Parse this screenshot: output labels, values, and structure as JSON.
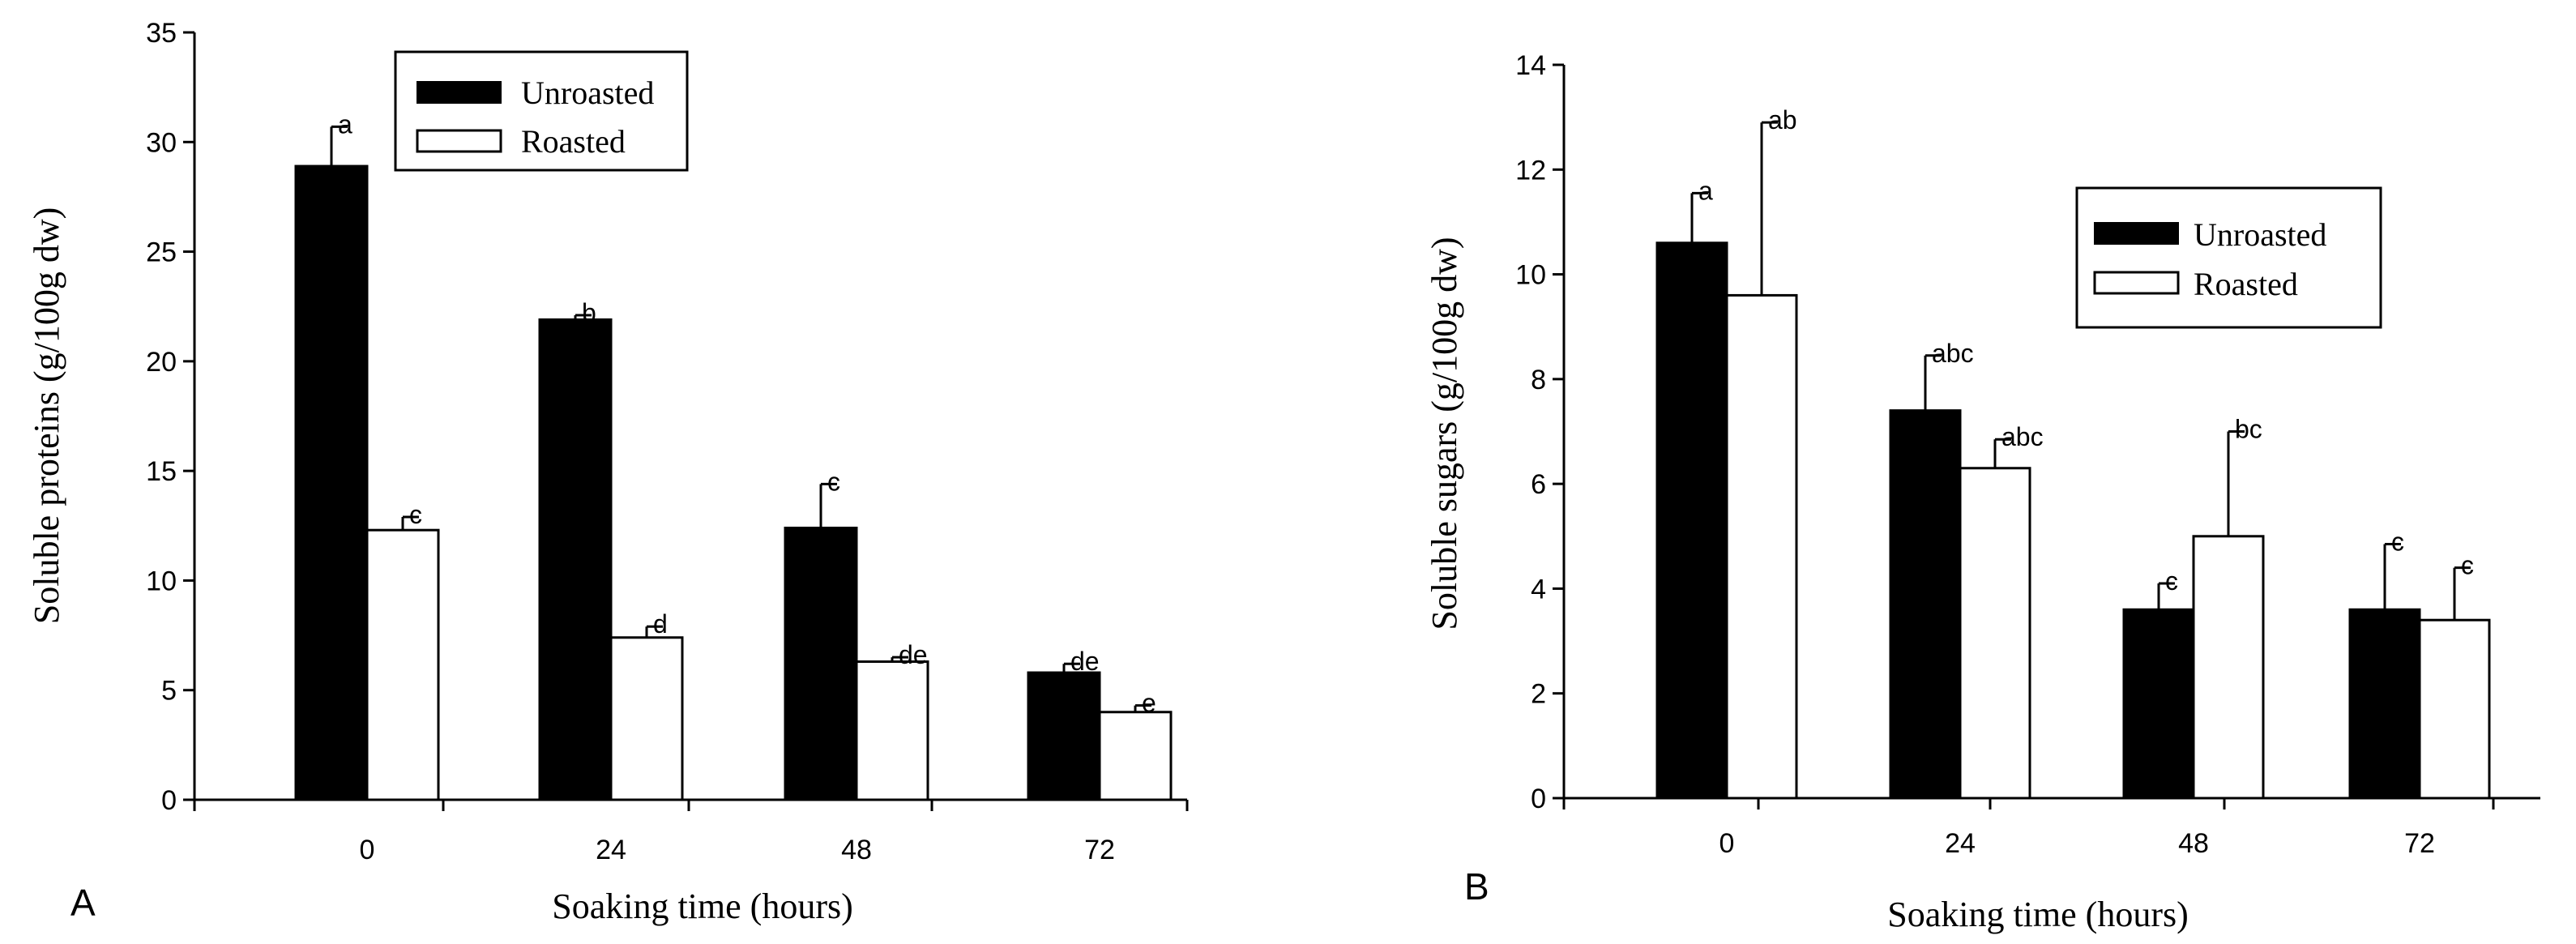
{
  "chart_data": [
    {
      "type": "bar",
      "panel_label": "A",
      "title": "",
      "xlabel": "Soaking time (hours)",
      "ylabel": "Soluble proteins (g/100g dw)",
      "ylim": [
        0,
        35
      ],
      "yticks": [
        0,
        5,
        10,
        15,
        20,
        25,
        30,
        35
      ],
      "categories": [
        "0",
        "24",
        "48",
        "72"
      ],
      "legend_position": "top-center",
      "series": [
        {
          "name": "Unroasted",
          "fill": "#000000",
          "values": [
            28.9,
            21.9,
            12.4,
            5.8
          ],
          "errors": [
            1.8,
            0.2,
            2.0,
            0.4
          ],
          "letters": [
            "a",
            "b",
            "c",
            "de"
          ]
        },
        {
          "name": "Roasted",
          "fill": "#ffffff",
          "values": [
            12.3,
            7.4,
            6.3,
            4.0
          ],
          "errors": [
            0.6,
            0.5,
            0.2,
            0.3
          ],
          "letters": [
            "c",
            "d",
            "de",
            "e"
          ]
        }
      ]
    },
    {
      "type": "bar",
      "panel_label": "B",
      "title": "",
      "xlabel": "Soaking time (hours)",
      "ylabel": "Soluble sugars (g/100g dw)",
      "ylim": [
        0,
        14
      ],
      "yticks": [
        0,
        2,
        4,
        6,
        8,
        10,
        12,
        14
      ],
      "categories": [
        "0",
        "24",
        "48",
        "72"
      ],
      "legend_position": "top-right",
      "series": [
        {
          "name": "Unroasted",
          "fill": "#000000",
          "values": [
            10.6,
            7.4,
            3.6,
            3.6
          ],
          "errors": [
            0.95,
            1.05,
            0.5,
            1.25
          ],
          "letters": [
            "a",
            "abc",
            "c",
            "c"
          ]
        },
        {
          "name": "Roasted",
          "fill": "#ffffff",
          "values": [
            9.6,
            6.3,
            5.0,
            3.4
          ],
          "errors": [
            3.3,
            0.55,
            2.0,
            1.0
          ],
          "letters": [
            "ab",
            "abc",
            "bc",
            "c"
          ]
        }
      ]
    }
  ]
}
